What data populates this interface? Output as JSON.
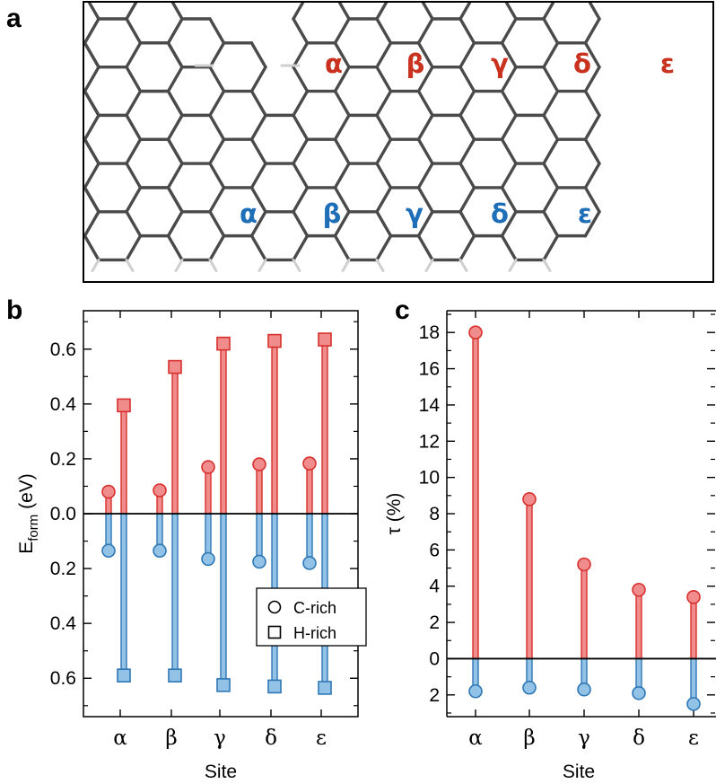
{
  "panels": {
    "a": "a",
    "b": "b",
    "c": "c"
  },
  "colors": {
    "red_fill": "#f08c8c",
    "red_line": "#d7302d",
    "blue_fill": "#92c2e6",
    "blue_line": "#2f78b6",
    "bond": "#4a4a4a",
    "hydrogen": "#cfcfcf",
    "label_red": "#c8321e",
    "label_blue": "#1f6fb8"
  },
  "structure": {
    "top_sites": [
      "α",
      "β",
      "γ",
      "δ",
      "ε"
    ],
    "bottom_sites": [
      "α",
      "β",
      "γ",
      "δ",
      "ε"
    ]
  },
  "chart_data": [
    {
      "panel": "b",
      "type": "lollipop",
      "categories": [
        "α",
        "β",
        "γ",
        "δ",
        "ε"
      ],
      "xlabel": "Site",
      "ylabel_main": "E",
      "ylabel_sub": "form",
      "ylabel_unit": " (eV)",
      "ylim": [
        -0.74,
        0.74
      ],
      "yticks": [
        -0.6,
        -0.4,
        -0.2,
        0.0,
        0.2,
        0.4,
        0.6
      ],
      "ytick_labels": [
        "0.6",
        "0.4",
        "0.2",
        "0.0",
        "0.2",
        "0.4",
        "0.6"
      ],
      "series": [
        {
          "name": "C-rich",
          "marker": "circle",
          "upper": [
            0.08,
            0.085,
            0.17,
            0.18,
            0.183
          ],
          "lower": [
            -0.135,
            -0.135,
            -0.165,
            -0.175,
            -0.18
          ]
        },
        {
          "name": "H-rich",
          "marker": "square",
          "upper": [
            0.395,
            0.535,
            0.62,
            0.63,
            0.635
          ],
          "lower": [
            -0.59,
            -0.59,
            -0.625,
            -0.63,
            -0.635
          ]
        }
      ],
      "legend": {
        "position": "bottom-right",
        "entries": [
          "C-rich",
          "H-rich"
        ]
      }
    },
    {
      "panel": "c",
      "type": "lollipop",
      "categories": [
        "α",
        "β",
        "γ",
        "δ",
        "ε"
      ],
      "xlabel": "Site",
      "ylabel": "τ (%)",
      "ylim": [
        -3.2,
        19.2
      ],
      "yticks": [
        -2,
        0,
        2,
        4,
        6,
        8,
        10,
        12,
        14,
        16,
        18
      ],
      "ytick_labels": [
        "2",
        "0",
        "2",
        "4",
        "6",
        "8",
        "10",
        "12",
        "14",
        "16",
        "18"
      ],
      "upper": [
        18.0,
        8.8,
        5.2,
        3.8,
        3.4
      ],
      "lower": [
        -1.8,
        -1.6,
        -1.7,
        -1.9,
        -2.5
      ]
    }
  ]
}
